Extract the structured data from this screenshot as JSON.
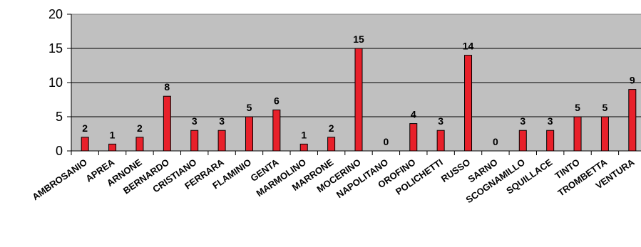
{
  "chart_data": {
    "type": "bar",
    "title": "",
    "xlabel": "",
    "ylabel": "",
    "ylim": [
      0,
      20
    ],
    "yticks": [
      "0",
      "5",
      "10",
      "15",
      "20"
    ],
    "grid": "horizontal",
    "colors": {
      "bar": "#e8202a",
      "bar_edge": "#000000",
      "plot_bg": "#c0c0c0"
    },
    "categories": [
      "AMBROSANIO",
      "APREA",
      "ARNONE",
      "BERNARDO",
      "CRISTIANO",
      "FERRARA",
      "FLAMINIO",
      "GENTA",
      "MARMOLINO",
      "MARRONE",
      "MOCERINO",
      "NAPOLITANO",
      "OROFINO",
      "POLICHETTI",
      "RUSSO",
      "SARNO",
      "SCOGNAMILLO",
      "SQUILLACE",
      "TINTO",
      "TROMBETTA",
      "VENTURA"
    ],
    "values": [
      2,
      1,
      2,
      8,
      3,
      3,
      5,
      6,
      1,
      2,
      15,
      0,
      4,
      3,
      14,
      0,
      3,
      3,
      5,
      5,
      9
    ],
    "data_labels": [
      "2",
      "1",
      "2",
      "8",
      "3",
      "3",
      "5",
      "6",
      "1",
      "2",
      "15",
      "0",
      "4",
      "3",
      "14",
      "0",
      "3",
      "3",
      "5",
      "5",
      "9"
    ]
  }
}
